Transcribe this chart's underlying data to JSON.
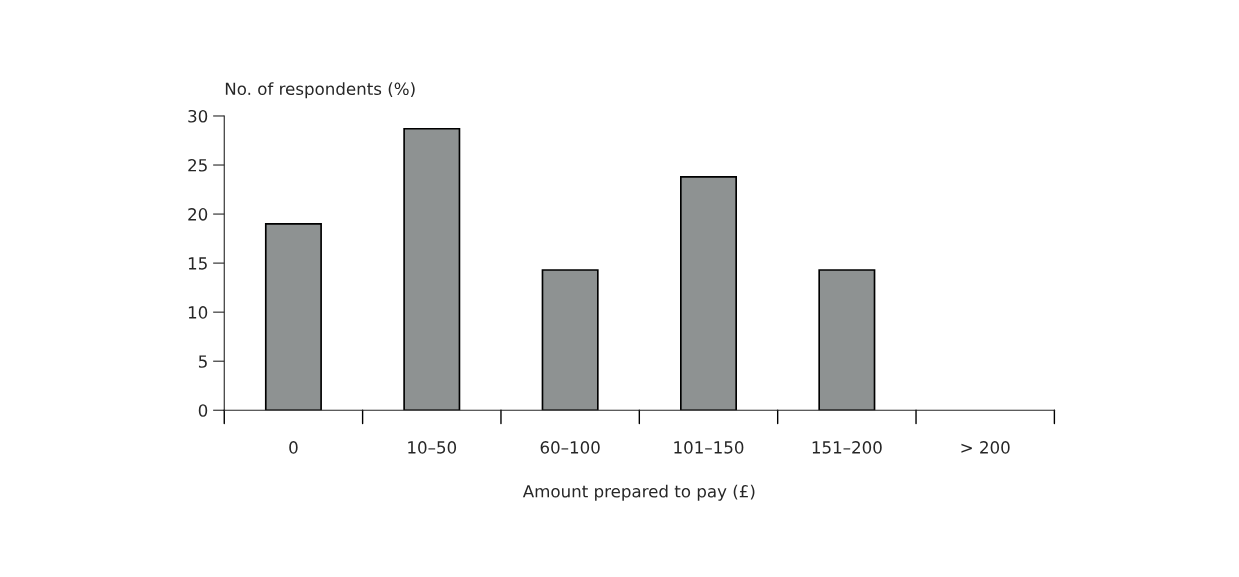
{
  "chart_data": {
    "type": "bar",
    "xlabel": "Amount prepared to pay (£)",
    "ylabel": "No. of respondents (%)",
    "categories": [
      "0",
      "10–50",
      "60–100",
      "101–150",
      "151–200",
      "> 200"
    ],
    "values": [
      19.0,
      28.7,
      14.3,
      23.8,
      14.3,
      0
    ],
    "color": "#8e9292",
    "ylim": [
      0,
      30
    ],
    "yticks": [
      0,
      5,
      10,
      15,
      20,
      25,
      30
    ],
    "grid": false,
    "legend": false
  }
}
